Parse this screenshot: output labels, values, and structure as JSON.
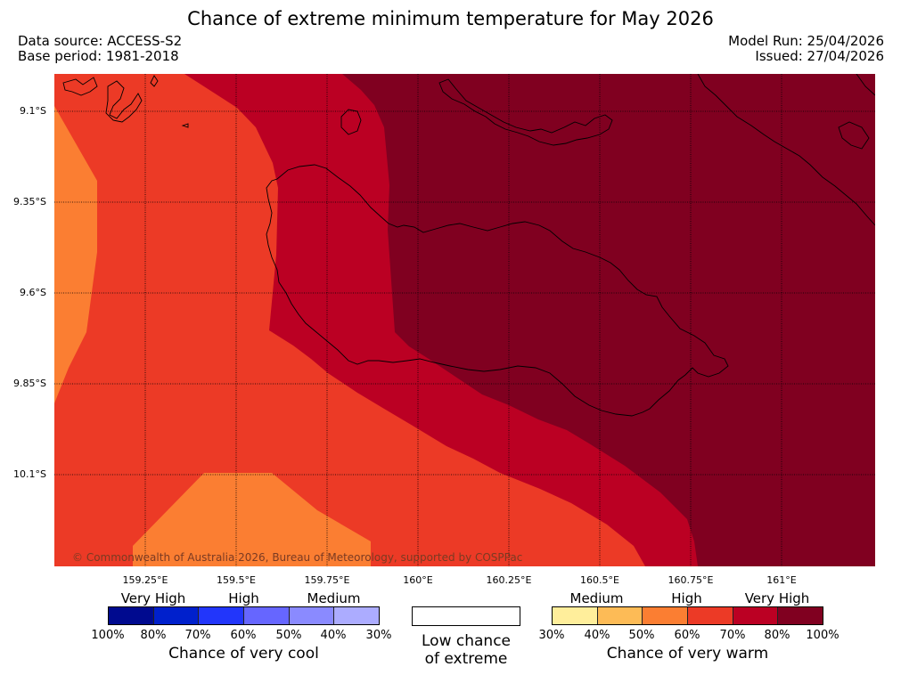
{
  "header": {
    "title": "Chance of extreme minimum temperature for May 2026",
    "data_source": "Data source: ACCESS-S2",
    "base_period": "Base period: 1981-2018",
    "model_run": "Model Run: 25/04/2026",
    "issued": "Issued: 27/04/2026"
  },
  "map": {
    "lat_labels": [
      "9.1°S",
      "9.35°S",
      "9.6°S",
      "9.85°S",
      "10.1°S"
    ],
    "lon_labels": [
      "159.25°E",
      "159.5°E",
      "159.75°E",
      "160°E",
      "160.25°E",
      "160.5°E",
      "160.75°E",
      "161°E"
    ],
    "copyright": "© Commonwealth of Australia 2026, Bureau of Meteorology, supported by COSPPac",
    "zone_colors": {
      "light_orange": "#fb7e32",
      "red_orange": "#ec3a26",
      "red": "#bb0023",
      "dark_red": "#800020"
    }
  },
  "legend": {
    "cool": {
      "categories": [
        "Very High",
        "High",
        "Medium"
      ],
      "ticks": [
        "100%",
        "80%",
        "70%",
        "60%",
        "50%",
        "40%",
        "30%"
      ],
      "colors": [
        "#000a8f",
        "#0020cc",
        "#2236fb",
        "#6666ff",
        "#8a8aff",
        "#acacff"
      ],
      "caption": "Chance of very cool"
    },
    "low": {
      "caption_line1": "Low chance",
      "caption_line2": "of extreme"
    },
    "warm": {
      "categories": [
        "Medium",
        "High",
        "Very High"
      ],
      "ticks": [
        "30%",
        "40%",
        "50%",
        "60%",
        "70%",
        "80%",
        "100%"
      ],
      "colors": [
        "#ffee9b",
        "#fdbb56",
        "#fb7e32",
        "#ec3a26",
        "#bb0023",
        "#800020"
      ],
      "caption": "Chance of very warm"
    }
  }
}
